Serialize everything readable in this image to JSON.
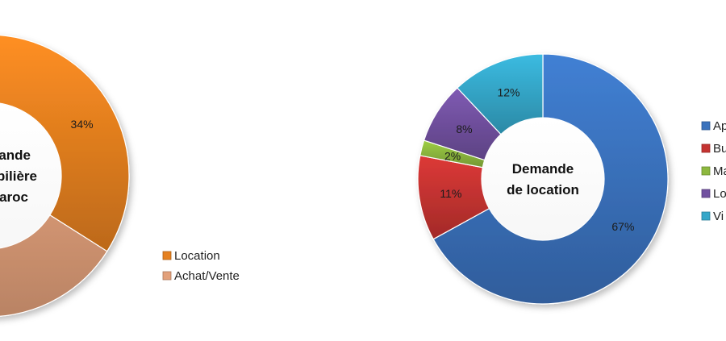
{
  "chart_data": [
    {
      "type": "pie",
      "variant": "donut",
      "title": "Demande immobilière au Maroc",
      "title_visible_lines": [
        "ande",
        "bilière",
        "aroc"
      ],
      "categories": [
        "Location",
        "Achat/Vente"
      ],
      "values": [
        34,
        66
      ],
      "data_labels": [
        "34%",
        ""
      ],
      "colors": [
        "#E5801F",
        "#E2A07A"
      ],
      "legend": [
        "Location",
        "Achat/Vente"
      ],
      "legend_position": "right"
    },
    {
      "type": "pie",
      "variant": "donut",
      "title": "Demande de location",
      "title_lines": [
        "Demande",
        "de location"
      ],
      "categories": [
        "Ap",
        "Bu",
        "Ma",
        "Lo",
        "Vi"
      ],
      "values": [
        67,
        11,
        2,
        8,
        12
      ],
      "data_labels": [
        "67%",
        "11%",
        "2%",
        "8%",
        "12%"
      ],
      "colors": [
        "#3A72BD",
        "#C53331",
        "#8DB83E",
        "#7150A0",
        "#35A7C9"
      ],
      "legend": [
        "Ap",
        "Bu",
        "Ma",
        "Lo",
        "Vi"
      ],
      "legend_position": "right"
    }
  ]
}
